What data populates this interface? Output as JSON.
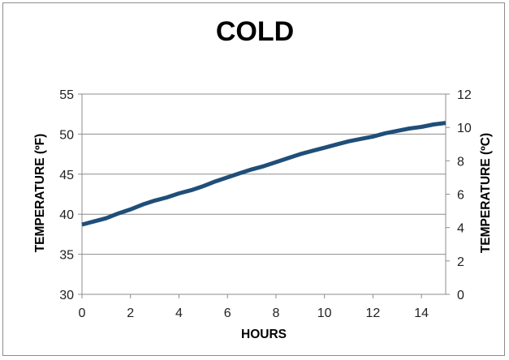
{
  "chart_data": {
    "type": "line",
    "title": "COLD",
    "xlabel": "HOURS",
    "ylabel": "TEMPERATURE (ºF)",
    "y2label": "TEMPERATURE (ºC)",
    "xlim": [
      0,
      15
    ],
    "ylim": [
      30,
      55
    ],
    "y2lim": [
      0,
      12
    ],
    "x_ticks": [
      0,
      2,
      4,
      6,
      8,
      10,
      12,
      14
    ],
    "y_ticks": [
      30,
      35,
      40,
      45,
      50,
      55
    ],
    "y2_ticks": [
      0,
      2,
      4,
      6,
      8,
      10,
      12
    ],
    "grid": true,
    "colors": {
      "line": "#1f4e79",
      "grid": "#8c8c8c",
      "axis": "#8c8c8c"
    },
    "series": [
      {
        "x": [
          0,
          0.5,
          1,
          1.5,
          2,
          2.5,
          3,
          3.5,
          4,
          4.5,
          5,
          5.5,
          6,
          6.5,
          7,
          7.5,
          8,
          8.5,
          9,
          9.5,
          10,
          10.5,
          11,
          11.5,
          12,
          12.5,
          13,
          13.5,
          14,
          14.5,
          15
        ],
        "y": [
          38.7,
          39.1,
          39.5,
          40.1,
          40.6,
          41.2,
          41.7,
          42.1,
          42.6,
          43.0,
          43.5,
          44.1,
          44.6,
          45.1,
          45.6,
          46.0,
          46.5,
          47.0,
          47.5,
          47.9,
          48.3,
          48.7,
          49.1,
          49.4,
          49.7,
          50.1,
          50.4,
          50.7,
          50.9,
          51.2,
          51.4
        ]
      }
    ]
  }
}
